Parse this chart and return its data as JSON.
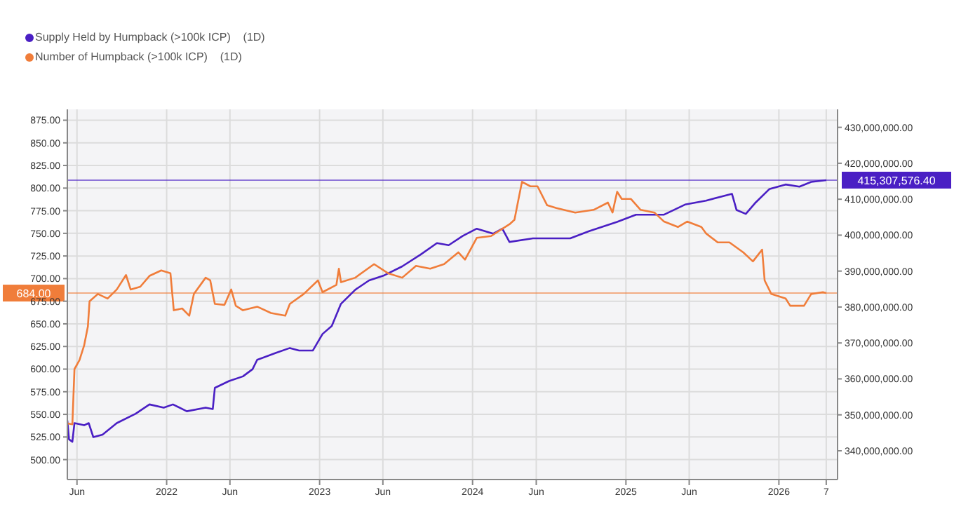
{
  "chart_data": {
    "type": "line",
    "legend": "top left",
    "grid": true,
    "xlim": [
      "2021-05-09",
      "2026-05-21"
    ],
    "xticks": [
      {
        "value": "2021-06-01",
        "label": "Jun"
      },
      {
        "value": "2022-01-01",
        "label": "2022"
      },
      {
        "value": "2022-06-01",
        "label": "Jun"
      },
      {
        "value": "2023-01-01",
        "label": "2023"
      },
      {
        "value": "2023-06-01",
        "label": "Jun"
      },
      {
        "value": "2024-01-01",
        "label": "2024"
      },
      {
        "value": "2024-06-01",
        "label": "Jun"
      },
      {
        "value": "2025-01-01",
        "label": "2025"
      },
      {
        "value": "2025-06-01",
        "label": "Jun"
      },
      {
        "value": "2026-01-01",
        "label": "2026"
      },
      {
        "value": "2026-04-24",
        "label": "7"
      }
    ],
    "ylim": [
      478,
      887
    ],
    "yticks": [
      {
        "value": 500,
        "label": "500.00"
      },
      {
        "value": 525,
        "label": "525.00"
      },
      {
        "value": 550,
        "label": "550.00"
      },
      {
        "value": 575,
        "label": "575.00"
      },
      {
        "value": 600,
        "label": "600.00"
      },
      {
        "value": 625,
        "label": "625.00"
      },
      {
        "value": 650,
        "label": "650.00"
      },
      {
        "value": 675,
        "label": "675.00"
      },
      {
        "value": 700,
        "label": "700.00"
      },
      {
        "value": 725,
        "label": "725.00"
      },
      {
        "value": 750,
        "label": "750.00"
      },
      {
        "value": 775,
        "label": "775.00"
      },
      {
        "value": 800,
        "label": "800.00"
      },
      {
        "value": 825,
        "label": "825.00"
      },
      {
        "value": 850,
        "label": "850.00"
      },
      {
        "value": 875,
        "label": "875.00"
      }
    ],
    "y2lim": [
      332000000,
      435000000
    ],
    "y2ticks": [
      {
        "value": 340000000,
        "label": "340,000,000.00"
      },
      {
        "value": 350000000,
        "label": "350,000,000.00"
      },
      {
        "value": 360000000,
        "label": "360,000,000.00"
      },
      {
        "value": 370000000,
        "label": "370,000,000.00"
      },
      {
        "value": 380000000,
        "label": "380,000,000.00"
      },
      {
        "value": 390000000,
        "label": "390,000,000.00"
      },
      {
        "value": 400000000,
        "label": "400,000,000.00"
      },
      {
        "value": 410000000,
        "label": "410,000,000.00"
      },
      {
        "value": 420000000,
        "label": "420,000,000.00"
      },
      {
        "value": 430000000,
        "label": "430,000,000.00"
      }
    ],
    "series": [
      {
        "name": "Supply Held by Humpback (>100k ICP)    (1D)",
        "color": "#4a1fc4",
        "axis": "y2",
        "x": [
          "2021-05-09",
          "2021-05-13",
          "2021-05-21",
          "2021-05-26",
          "2021-06-18",
          "2021-06-29",
          "2021-07-10",
          "2021-08-01",
          "2021-09-04",
          "2021-10-19",
          "2021-11-21",
          "2021-12-25",
          "2022-01-16",
          "2022-02-18",
          "2022-04-04",
          "2022-04-21",
          "2022-04-26",
          "2022-05-30",
          "2022-07-02",
          "2022-07-25",
          "2022-08-05",
          "2022-09-18",
          "2022-10-22",
          "2022-11-13",
          "2022-12-16",
          "2023-01-08",
          "2023-01-30",
          "2023-02-21",
          "2023-03-27",
          "2023-04-29",
          "2023-06-02",
          "2023-07-17",
          "2023-08-30",
          "2023-10-08",
          "2023-11-05",
          "2023-12-09",
          "2024-01-11",
          "2024-02-19",
          "2024-03-12",
          "2024-03-29",
          "2024-05-24",
          "2024-08-21",
          "2024-10-05",
          "2024-12-11",
          "2025-01-25",
          "2025-04-02",
          "2025-05-22",
          "2025-07-11",
          "2025-09-11",
          "2025-09-22",
          "2025-10-14",
          "2025-11-05",
          "2025-12-09",
          "2026-01-17",
          "2026-02-19",
          "2026-03-19",
          "2026-04-24"
        ],
        "values": [
          348400000,
          343200000,
          342500000,
          347700000,
          347100000,
          347700000,
          343800000,
          344500000,
          347700000,
          350300000,
          352900000,
          352000000,
          352900000,
          351000000,
          352000000,
          351600000,
          357500000,
          359400000,
          360700000,
          362700000,
          365300000,
          367200000,
          368600000,
          367900000,
          367900000,
          372500000,
          374700000,
          380900000,
          384800000,
          387400000,
          388700000,
          391300000,
          394600000,
          397800000,
          397200000,
          399800000,
          401800000,
          400400000,
          401800000,
          398100000,
          399100000,
          399100000,
          401100000,
          403700000,
          405700000,
          405700000,
          408500000,
          409600000,
          411500000,
          407000000,
          405900000,
          408900000,
          412800000,
          414100000,
          413500000,
          414800000,
          415300000
        ]
      },
      {
        "name": "Number of Humpback (>100k ICP)    (1D)",
        "color": "#f07d3a",
        "x": [
          "2021-05-10",
          "2021-05-21",
          "2021-05-26",
          "2021-06-07",
          "2021-06-18",
          "2021-06-27",
          "2021-07-01",
          "2021-07-21",
          "2021-08-13",
          "2021-09-04",
          "2021-09-26",
          "2021-10-07",
          "2021-10-30",
          "2021-11-21",
          "2021-12-19",
          "2022-01-10",
          "2022-01-18",
          "2022-02-07",
          "2022-02-24",
          "2022-03-07",
          "2022-04-04",
          "2022-04-15",
          "2022-04-26",
          "2022-05-19",
          "2022-06-04",
          "2022-06-15",
          "2022-07-02",
          "2022-08-05",
          "2022-09-07",
          "2022-10-11",
          "2022-10-22",
          "2022-11-24",
          "2022-12-28",
          "2023-01-08",
          "2023-02-10",
          "2023-02-16",
          "2023-02-21",
          "2023-03-27",
          "2023-05-11",
          "2023-06-13",
          "2023-07-17",
          "2023-08-19",
          "2023-09-22",
          "2023-10-25",
          "2023-11-28",
          "2023-12-14",
          "2024-01-11",
          "2024-02-14",
          "2024-03-12",
          "2024-03-29",
          "2024-04-10",
          "2024-04-21",
          "2024-04-28",
          "2024-05-18",
          "2024-06-04",
          "2024-06-27",
          "2024-07-19",
          "2024-09-02",
          "2024-10-16",
          "2024-11-19",
          "2024-11-30",
          "2024-12-11",
          "2024-12-22",
          "2025-01-13",
          "2025-02-05",
          "2025-03-10",
          "2025-04-02",
          "2025-05-05",
          "2025-05-27",
          "2025-06-30",
          "2025-07-11",
          "2025-08-08",
          "2025-09-05",
          "2025-10-08",
          "2025-10-31",
          "2025-11-22",
          "2025-11-28",
          "2025-12-14",
          "2026-01-17",
          "2026-01-28",
          "2026-03-02",
          "2026-03-19",
          "2026-04-16",
          "2026-04-24"
        ],
        "values": [
          540,
          539,
          600,
          610,
          626,
          647,
          675,
          683,
          678,
          688,
          704,
          688,
          691,
          703,
          709,
          706,
          665,
          667,
          659,
          683,
          701,
          698,
          672,
          671,
          688,
          670,
          665,
          669,
          662,
          659,
          672,
          683,
          698,
          685,
          693,
          711,
          696,
          701,
          716,
          706,
          701,
          714,
          711,
          716,
          729,
          721,
          745,
          747,
          755,
          760,
          765,
          791,
          807,
          802,
          802,
          781,
          778,
          773,
          776,
          784,
          773,
          796,
          788,
          788,
          776,
          773,
          763,
          757,
          763,
          757,
          750,
          740,
          740,
          729,
          719,
          732,
          698,
          683,
          678,
          670,
          670,
          683,
          685,
          684
        ]
      }
    ],
    "ref_lines": [
      {
        "axis": "y",
        "value": 684,
        "label": "684.00",
        "color": "#f07d3a"
      },
      {
        "axis": "y2",
        "value": 415307576.4,
        "label": "415,307,576.40",
        "color": "#4a1fc4"
      }
    ]
  }
}
